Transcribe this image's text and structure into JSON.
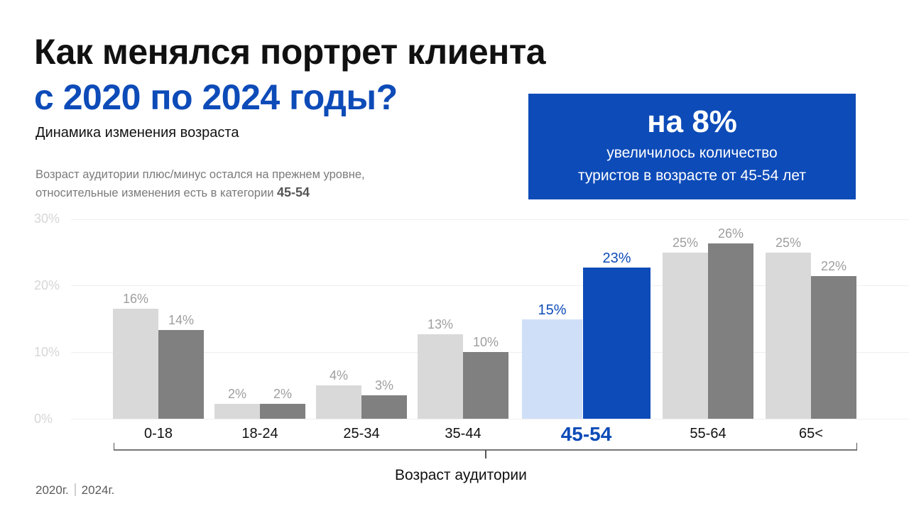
{
  "header": {
    "title_line1": "Как менялся портрет клиента",
    "title_line2": "с 2020 по 2024 годы?",
    "subtitle": "Динамика изменения возраста",
    "note_line1": "Возраст аудитории плюс/минус остался на прежнем уровне,",
    "note_line2_prefix": "относительные изменения есть в категории",
    "note_line2_highlight": "45-54"
  },
  "callout": {
    "big": "на 8%",
    "line1": "увеличилось количество",
    "line2": "туристов в возрасте от 45-54 лет"
  },
  "colors": {
    "accent": "#0d4bb8",
    "accent_light": "#cfdff8",
    "bar_2020": "#d9d9d9",
    "bar_2024": "#808080",
    "grid": "#eeeeee",
    "tick_text": "#d6d6d6",
    "value_text": "#9e9e9e"
  },
  "y_ticks": [
    "30%",
    "20%",
    "10%",
    "0%"
  ],
  "x_axis_label": "Возраст аудитории",
  "legend": {
    "series_2020": "2020г.",
    "series_2024": "2024г."
  },
  "chart_data": {
    "type": "bar",
    "title": "Динамика изменения возраста",
    "xlabel": "Возраст аудитории",
    "ylabel": "",
    "ylim": [
      0,
      30
    ],
    "y_ticks": [
      0,
      10,
      20,
      30
    ],
    "grid": true,
    "legend_position": "bottom-left",
    "categories": [
      "0-18",
      "18-24",
      "25-34",
      "35-44",
      "45-54",
      "55-64",
      "65<"
    ],
    "highlighted_category": "45-54",
    "series": [
      {
        "name": "2020г.",
        "values": [
          16,
          2,
          4,
          13,
          15,
          25,
          25
        ],
        "labels": [
          "16%",
          "2%",
          "4%",
          "13%",
          "15%",
          "25%",
          "25%"
        ]
      },
      {
        "name": "2024г.",
        "values": [
          14,
          2,
          3,
          10,
          23,
          26,
          22
        ],
        "labels": [
          "14%",
          "2%",
          "3%",
          "10%",
          "23%",
          "26%",
          "22%"
        ]
      }
    ]
  }
}
